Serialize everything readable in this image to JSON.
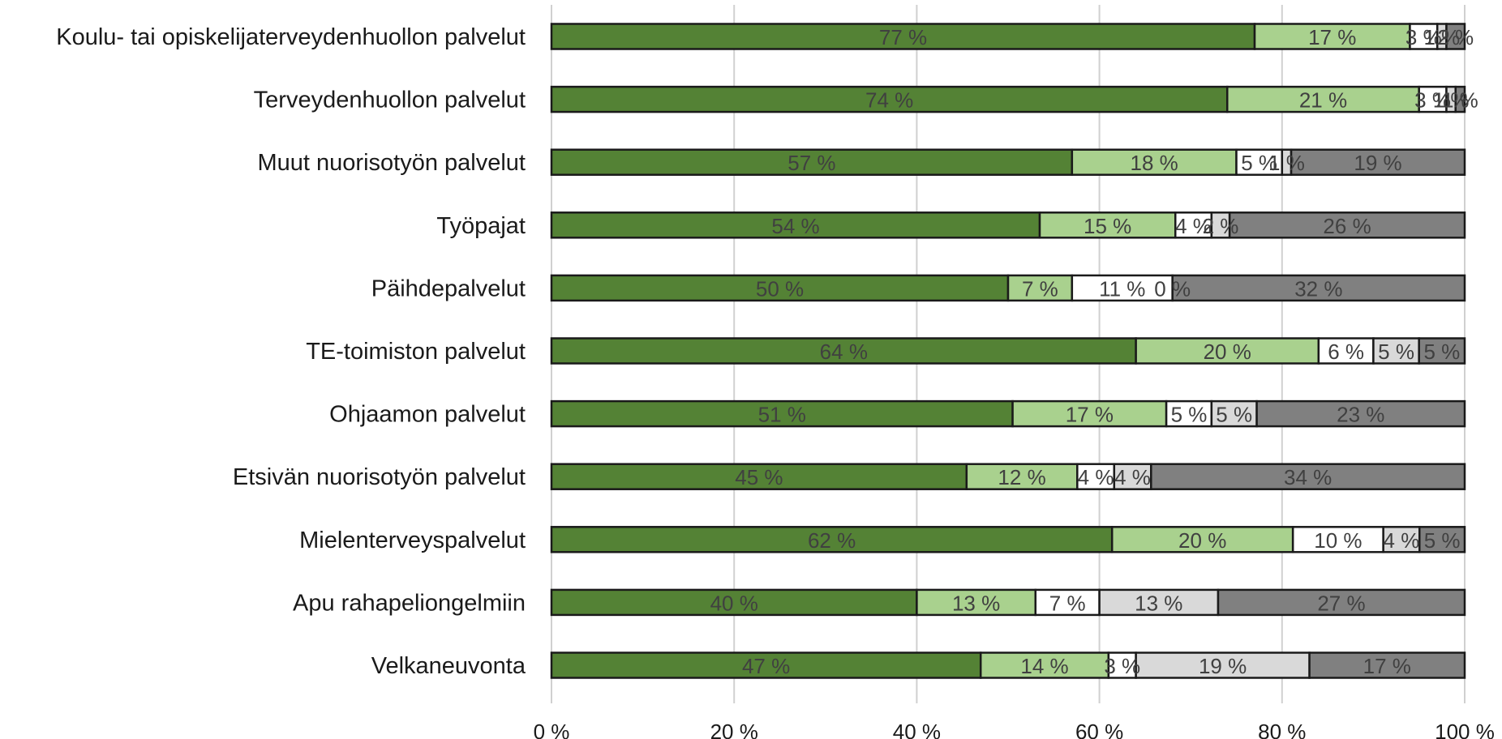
{
  "chart_data": {
    "type": "bar",
    "orientation": "horizontal",
    "stacked": true,
    "percent": true,
    "title": "",
    "xlabel": "",
    "ylabel": "",
    "xlim": [
      0,
      100
    ],
    "grid": true,
    "legend": "none",
    "x_ticks": [
      "0 %",
      "20 %",
      "40 %",
      "60 %",
      "80 %",
      "100 %"
    ],
    "categories": [
      "Koulu- tai opiskelijaterveydenhuollon palvelut",
      "Terveydenhuollon palvelut",
      "Muut nuorisotyön palvelut",
      "Työpajat",
      "Päihdepalvelut",
      "TE-toimiston palvelut",
      "Ohjaamon palvelut",
      "Etsivän nuorisotyön palvelut",
      "Mielenterveyspalvelut",
      "Apu rahapeliongelmiin",
      "Velkaneuvonta"
    ],
    "series": [
      {
        "color": "#548235",
        "values": [
          77,
          74,
          57,
          54,
          50,
          64,
          51,
          45,
          62,
          40,
          47
        ],
        "labels": [
          "77 %",
          "74 %",
          "57 %",
          "54 %",
          "50 %",
          "64 %",
          "51 %",
          "45 %",
          "62 %",
          "40 %",
          "47 %"
        ]
      },
      {
        "color": "#a9d18e",
        "values": [
          17,
          21,
          18,
          15,
          7,
          20,
          17,
          12,
          20,
          13,
          14
        ],
        "labels": [
          "17 %",
          "21 %",
          "18 %",
          "15 %",
          "7 %",
          "20 %",
          "17 %",
          "12 %",
          "20 %",
          "13 %",
          "14 %"
        ]
      },
      {
        "color": "#ffffff",
        "values": [
          3,
          3,
          5,
          4,
          11,
          6,
          5,
          4,
          10,
          7,
          3
        ],
        "labels": [
          "3 %",
          "3 %",
          "5 %",
          "4 %",
          "11 %",
          "6 %",
          "5 %",
          "4 %",
          "10 %",
          "7 %",
          "3 %"
        ]
      },
      {
        "color": "#d9d9d9",
        "values": [
          1,
          1,
          1,
          2,
          0,
          5,
          5,
          4,
          4,
          13,
          19
        ],
        "labels": [
          "1 %",
          "1 %",
          "1 %",
          "2 %",
          "0 %",
          "5 %",
          "5 %",
          "4 %",
          "4 %",
          "13 %",
          "19 %"
        ]
      },
      {
        "color": "#808080",
        "values": [
          2,
          1,
          19,
          26,
          32,
          5,
          23,
          34,
          5,
          27,
          17
        ],
        "labels": [
          "2 %",
          "1 %",
          "19 %",
          "26 %",
          "32 %",
          "5 %",
          "23 %",
          "34 %",
          "5 %",
          "27 %",
          "17 %"
        ]
      }
    ]
  }
}
